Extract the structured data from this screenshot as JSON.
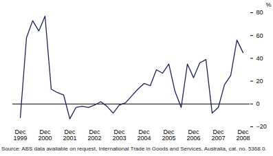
{
  "chart_data": {
    "type": "line",
    "caption": "Source: ABS data available on request, International Trade in Goods and Services, Australia, cat. no. 5368.0.",
    "y_label": "%",
    "categories": [
      "Dec 1999",
      null,
      null,
      null,
      "Dec 2000",
      null,
      null,
      null,
      "Dec 2001",
      null,
      null,
      null,
      "Dec 2002",
      null,
      null,
      null,
      "Dec 2003",
      null,
      null,
      null,
      "Dec 2004",
      null,
      null,
      null,
      "Dec 2005",
      null,
      null,
      null,
      "Dec 2006",
      null,
      null,
      null,
      "Dec 2007",
      null,
      null,
      null,
      "Dec 2008"
    ],
    "values": [
      -12,
      58,
      73,
      64,
      77,
      13,
      10,
      8,
      -13,
      -3,
      -2,
      -3,
      -1,
      2,
      -2,
      -8,
      -1,
      1,
      7,
      13,
      18,
      16,
      30,
      27,
      35,
      11,
      -3,
      35,
      23,
      36,
      39,
      -8,
      -3,
      17,
      25,
      56,
      45
    ],
    "color": "#1b1f5c",
    "ylim": [
      -20,
      80
    ],
    "yticks": [
      -20,
      0,
      20,
      40,
      60,
      80
    ],
    "grid": false
  }
}
